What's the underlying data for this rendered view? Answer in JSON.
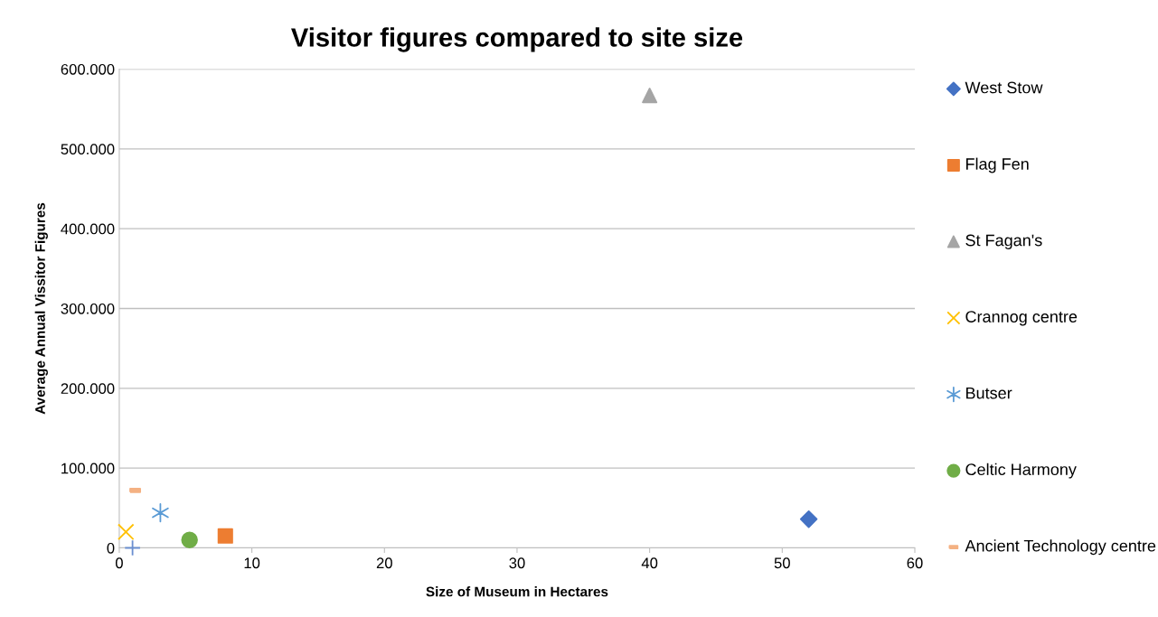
{
  "chart_data": {
    "type": "scatter",
    "title": "Visitor figures compared to site size",
    "xlabel": "Size of Museum in Hectares",
    "ylabel": "Average Annual Vissitor Figures",
    "series": [
      {
        "name": "West Stow",
        "color": "#4472c4",
        "marker": "diamond",
        "x": [
          52
        ],
        "values": [
          36000
        ]
      },
      {
        "name": "Flag Fen",
        "color": "#ed7d31",
        "marker": "square",
        "x": [
          8
        ],
        "values": [
          15000
        ]
      },
      {
        "name": "St Fagan's",
        "color": "#a5a5a5",
        "marker": "triangle",
        "x": [
          40
        ],
        "values": [
          567000
        ]
      },
      {
        "name": "Crannog centre",
        "color": "#ffc000",
        "marker": "cross",
        "x": [
          0.5
        ],
        "values": [
          20000
        ]
      },
      {
        "name": "Butser",
        "color": "#5b9bd5",
        "marker": "cross",
        "x": [
          3.1
        ],
        "values": [
          44000
        ]
      },
      {
        "name": "Celtic Harmony",
        "color": "#70ad47",
        "marker": "circle",
        "x": [
          5.3
        ],
        "values": [
          10000
        ]
      },
      {
        "name": "Ancient Technology centre",
        "color": "#f4b183",
        "marker": "square",
        "x": [
          1.2
        ],
        "values": [
          72000
        ]
      },
      {
        "color": "#6a8fd0",
        "marker": "cross",
        "x": [
          1.0
        ],
        "values": [
          0
        ]
      }
    ],
    "xlim": [
      0,
      60
    ],
    "xticks": [
      0,
      10,
      20,
      30,
      40,
      50,
      60
    ],
    "ylim": [
      0,
      600000
    ],
    "yticks": [
      0,
      {
        "value": 100000,
        "label": "100.000"
      },
      {
        "value": 200000,
        "label": "200.000"
      },
      {
        "value": 300000,
        "label": "300.000"
      },
      {
        "value": 400000,
        "label": "400.000"
      },
      {
        "value": 500000,
        "label": "500.000"
      },
      {
        "value": 600000,
        "label": "600.000"
      }
    ],
    "grid": "y",
    "legend": "right"
  }
}
